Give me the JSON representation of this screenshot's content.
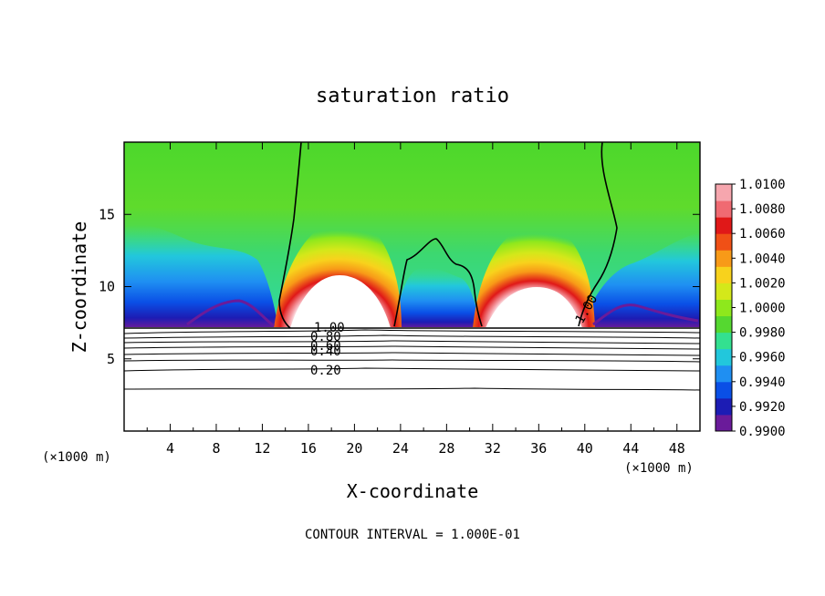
{
  "chart_data": {
    "type": "heatmap",
    "title": "saturation ratio",
    "xlabel": "X-coordinate",
    "ylabel": "Z-coordinate",
    "x_unit_left": "(×1000 m)",
    "x_unit_right": "(×1000 m)",
    "footer": "CONTOUR INTERVAL = 1.000E-01",
    "xlim": [
      0,
      50
    ],
    "ylim": [
      0,
      20
    ],
    "x_ticks": [
      4,
      8,
      12,
      16,
      20,
      24,
      28,
      32,
      36,
      40,
      44,
      48
    ],
    "y_ticks": [
      5,
      10,
      15
    ],
    "colorbar": {
      "min": 0.99,
      "max": 1.01,
      "labels": [
        "1.0100",
        "1.0080",
        "1.0060",
        "1.0040",
        "1.0020",
        "1.0000",
        "0.9980",
        "0.9960",
        "0.9940",
        "0.9920",
        "0.9900"
      ],
      "colors": [
        "#6a1b9a",
        "#1c1cb4",
        "#0a4fe6",
        "#1f8ff2",
        "#22c7dc",
        "#33e090",
        "#55d830",
        "#8ee81c",
        "#d4e81a",
        "#f8d21c",
        "#f89a18",
        "#f05016",
        "#e01818",
        "#f06a72",
        "#f6a6ae"
      ]
    },
    "contour_labels": [
      "1.00",
      "1.00",
      "0.80",
      "0.60",
      "0.40",
      "0.20"
    ],
    "contour_levels_below_cloud": [
      0.2,
      0.4,
      0.6,
      0.8,
      1.0
    ],
    "cloud_base_z": 7.2,
    "plumes": [
      {
        "x_center": 19.5,
        "x_range": [
          14,
          24
        ],
        "peak_z": 13.8,
        "core": "white"
      },
      {
        "x_center": 35,
        "x_range": [
          30.5,
          39.5
        ],
        "peak_z": 13.5,
        "core": "white"
      }
    ],
    "dry_zones": [
      {
        "x_range": [
          0,
          13.5
        ],
        "min_value": 0.99
      },
      {
        "x_range": [
          24,
          30.5
        ],
        "min_value": 0.992
      },
      {
        "x_range": [
          40,
          50
        ],
        "min_value": 0.991
      }
    ],
    "background_value_upper": 1.0
  }
}
